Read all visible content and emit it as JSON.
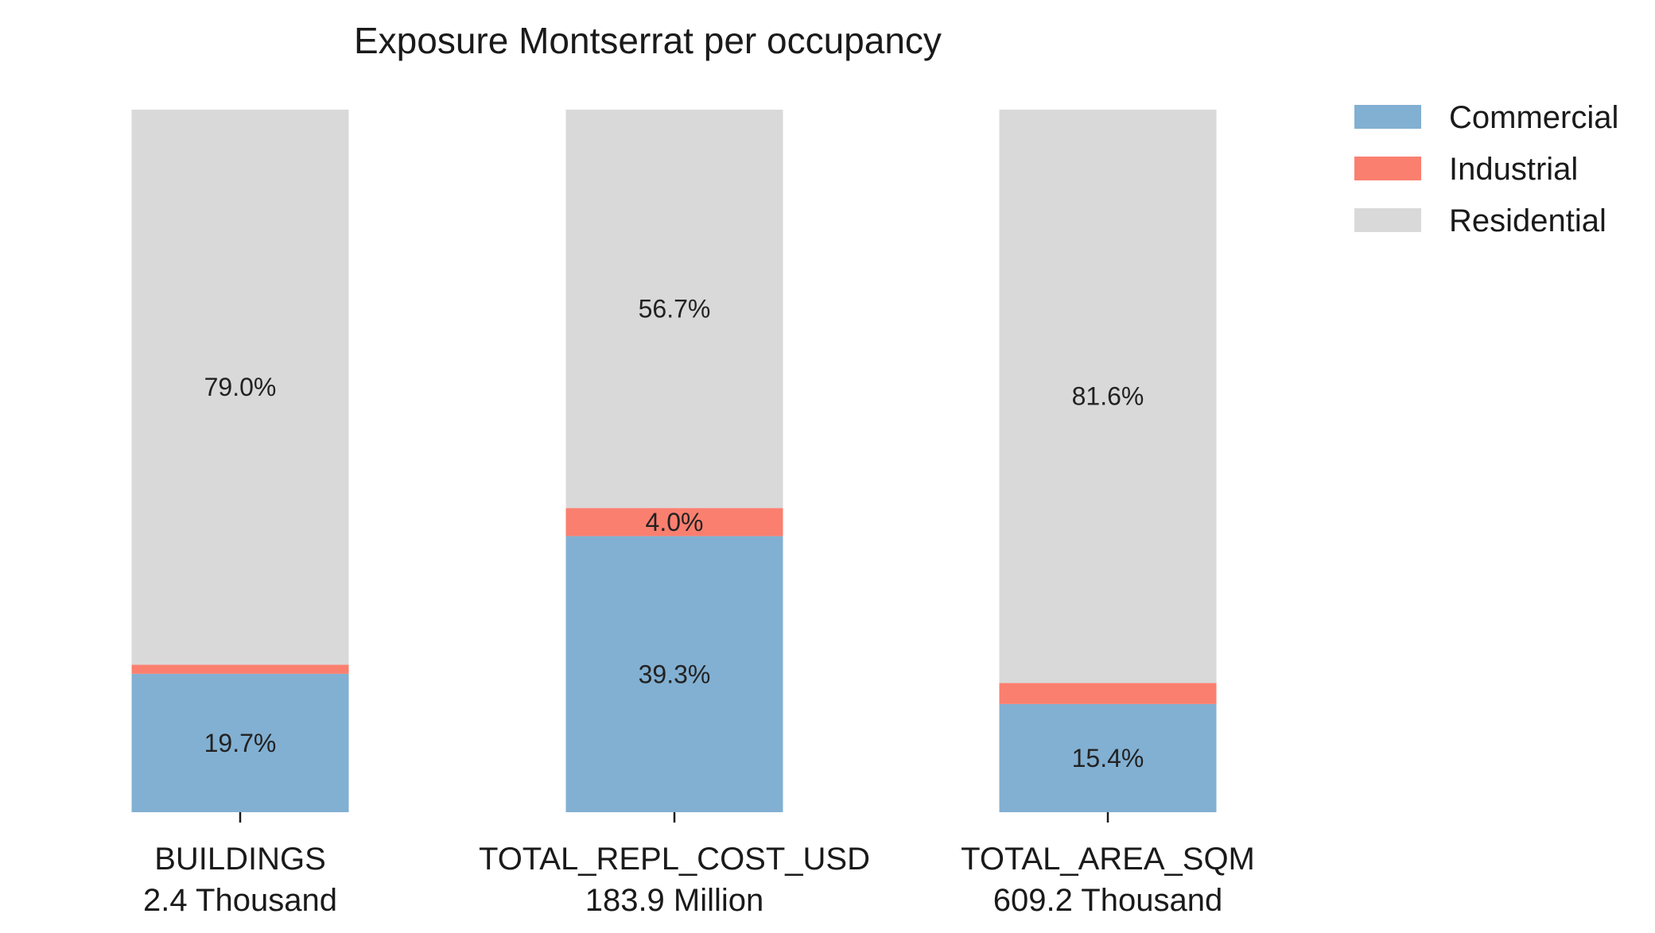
{
  "chart_data": {
    "type": "bar",
    "stacked": true,
    "normalized": true,
    "title": "Exposure Montserrat per occupancy",
    "categories": [
      "BUILDINGS",
      "TOTAL_REPL_COST_USD",
      "TOTAL_AREA_SQM"
    ],
    "category_totals": [
      "2.4 Thousand",
      "183.9 Million",
      "609.2 Thousand"
    ],
    "ylim": [
      0,
      100
    ],
    "grid": false,
    "legend_position": "top-right (outside plot)",
    "series": [
      {
        "name": "Commercial",
        "color": "#82b0d2",
        "values": [
          19.7,
          39.3,
          15.4
        ],
        "labels": [
          "19.7%",
          "39.3%",
          "15.4%"
        ]
      },
      {
        "name": "Industrial",
        "color": "#fa7f6f",
        "values": [
          1.3,
          4.0,
          3.0
        ],
        "labels": [
          "",
          "4.0%",
          ""
        ]
      },
      {
        "name": "Residential",
        "color": "#d9d9d9",
        "values": [
          79.0,
          56.7,
          81.6
        ],
        "labels": [
          "79.0%",
          "56.7%",
          "81.6%"
        ]
      }
    ]
  }
}
